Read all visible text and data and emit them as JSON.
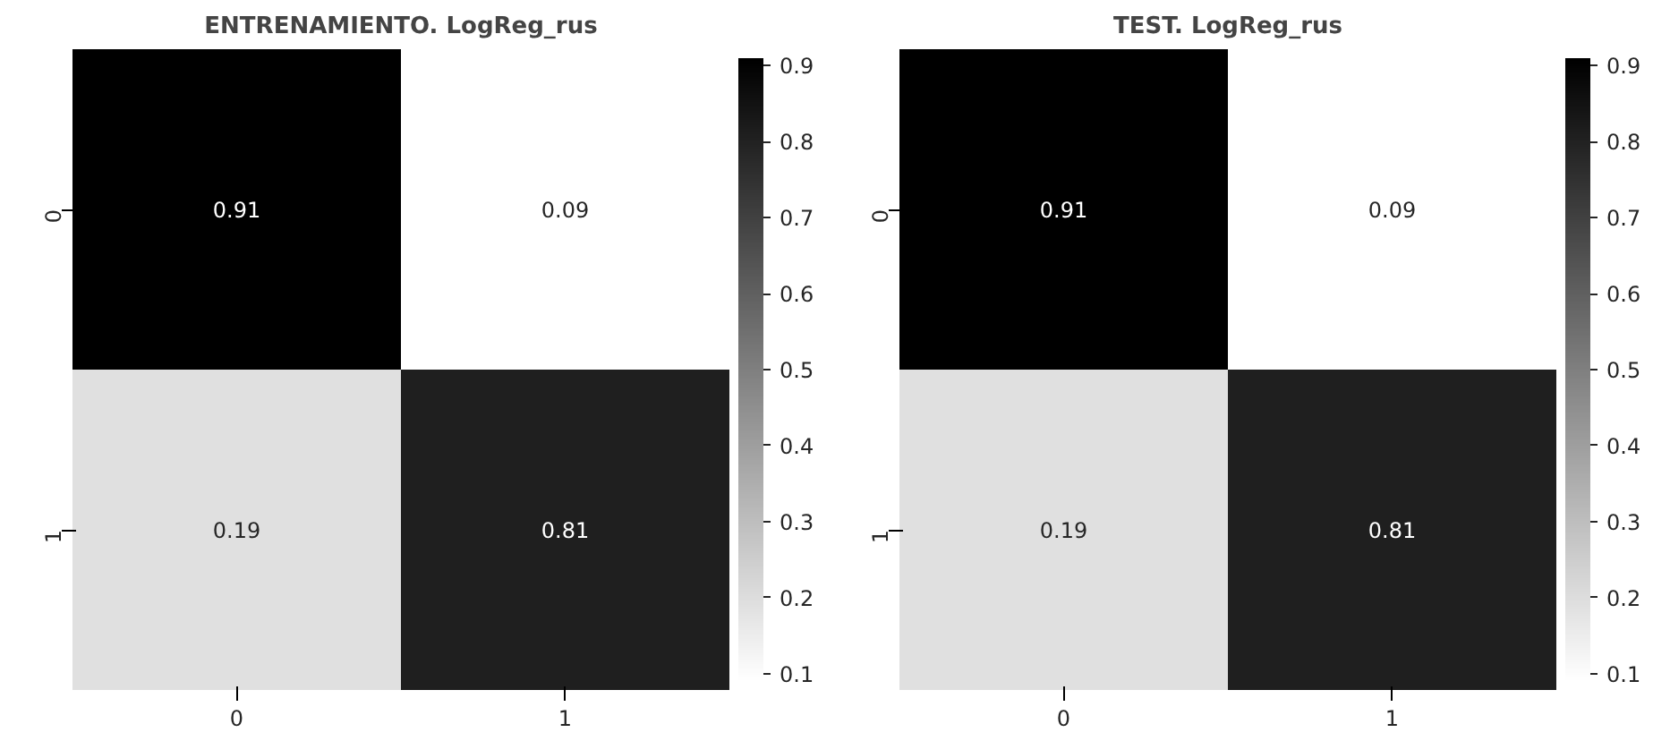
{
  "chart_data": [
    {
      "type": "heatmap",
      "title": "ENTRENAMIENTO. LogReg_rus",
      "categories": [
        "0",
        "1"
      ],
      "y_categories": [
        "0",
        "1"
      ],
      "cells": [
        [
          0.91,
          0.09
        ],
        [
          0.19,
          0.81
        ]
      ],
      "data_labels": true,
      "clim": [
        0.09,
        0.91
      ],
      "cticks": [
        0.1,
        0.2,
        0.3,
        0.4,
        0.5,
        0.6,
        0.7,
        0.8,
        0.9
      ]
    },
    {
      "type": "heatmap",
      "title": "TEST. LogReg_rus",
      "categories": [
        "0",
        "1"
      ],
      "y_categories": [
        "0",
        "1"
      ],
      "cells": [
        [
          0.91,
          0.09
        ],
        [
          0.19,
          0.81
        ]
      ],
      "data_labels": true,
      "clim": [
        0.09,
        0.91
      ],
      "cticks": [
        0.1,
        0.2,
        0.3,
        0.4,
        0.5,
        0.6,
        0.7,
        0.8,
        0.9
      ]
    }
  ]
}
